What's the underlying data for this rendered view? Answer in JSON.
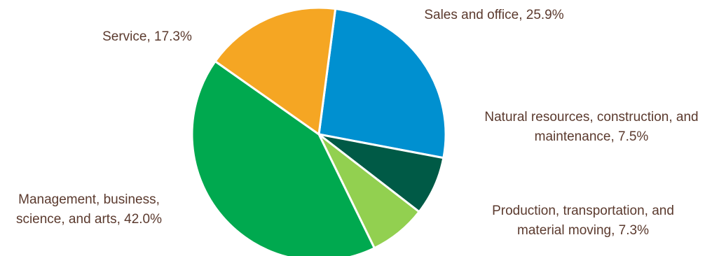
{
  "chart_data": {
    "type": "pie",
    "categories": [
      "Sales and office",
      "Natural resources, construction, and maintenance",
      "Production, transportation, and material moving",
      "Management, business, science, and arts",
      "Service"
    ],
    "values": [
      25.9,
      7.5,
      7.3,
      42.0,
      17.3
    ],
    "unit": "%",
    "colors": [
      "#0090d0",
      "#005a46",
      "#92d050",
      "#00a94f",
      "#f5a623"
    ],
    "labels": [
      {
        "lines": [
          "Sales and office, 25.9%"
        ]
      },
      {
        "lines": [
          "Natural resources, construction, and",
          "maintenance, 7.5%"
        ]
      },
      {
        "lines": [
          "Production, transportation, and",
          "material moving, 7.3%"
        ]
      },
      {
        "lines": [
          "Management, business,",
          "science, and arts, 42.0%"
        ]
      },
      {
        "lines": [
          "Service, 17.3%"
        ]
      }
    ],
    "start_direction": "12 o'clock, slightly right",
    "direction": "clockwise",
    "legend": "none",
    "label_color": "#5b3a2e"
  }
}
